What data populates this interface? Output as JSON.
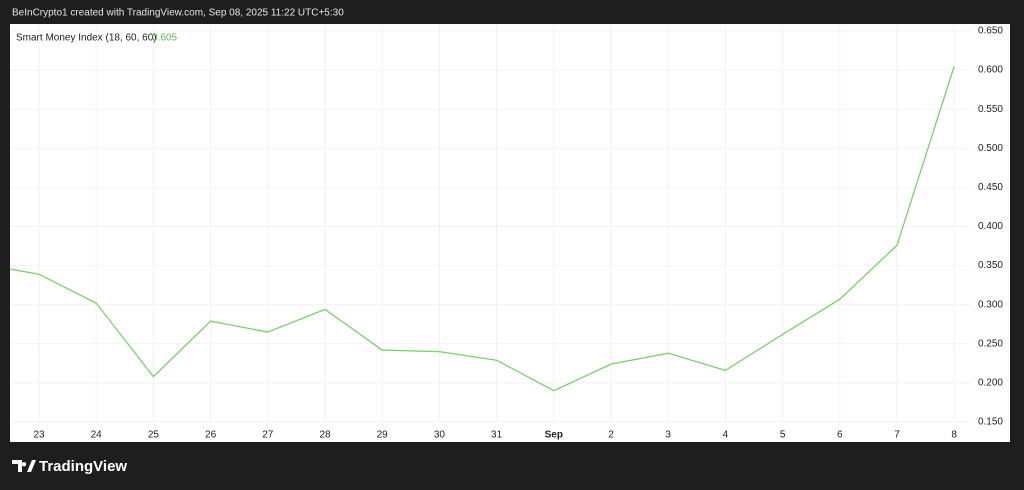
{
  "header": "BeInCrypto1 created with TradingView.com, Sep 08, 2025 11:22 UTC+5:30",
  "chart_data": {
    "type": "line",
    "categories": [
      null,
      "23",
      "24",
      "25",
      "26",
      "27",
      "28",
      "29",
      "30",
      "31",
      "Sep",
      "2",
      "3",
      "4",
      "5",
      "6",
      "7",
      "8"
    ],
    "series": [
      {
        "name": "Smart Money Index (18, 60, 60)",
        "color": "#7ccf6e",
        "values": [
          0.352,
          0.339,
          0.302,
          0.208,
          0.279,
          0.265,
          0.294,
          0.242,
          0.24,
          0.229,
          0.19,
          0.224,
          0.238,
          0.216,
          0.262,
          0.307,
          0.376,
          0.605
        ]
      }
    ],
    "ylim": [
      0.15,
      0.65
    ],
    "yticks": [
      {
        "value": 0.15,
        "label": "0.150"
      },
      {
        "value": 0.2,
        "label": "0.200"
      },
      {
        "value": 0.25,
        "label": "0.250"
      },
      {
        "value": 0.3,
        "label": "0.300"
      },
      {
        "value": 0.35,
        "label": "0.350"
      },
      {
        "value": 0.4,
        "label": "0.400"
      },
      {
        "value": 0.45,
        "label": "0.450"
      },
      {
        "value": 0.5,
        "label": "0.500"
      },
      {
        "value": 0.55,
        "label": "0.550"
      },
      {
        "value": 0.6,
        "label": "0.600"
      },
      {
        "value": 0.65,
        "label": "0.650"
      }
    ],
    "grid": true
  },
  "footer": {
    "brand": "TradingView"
  }
}
